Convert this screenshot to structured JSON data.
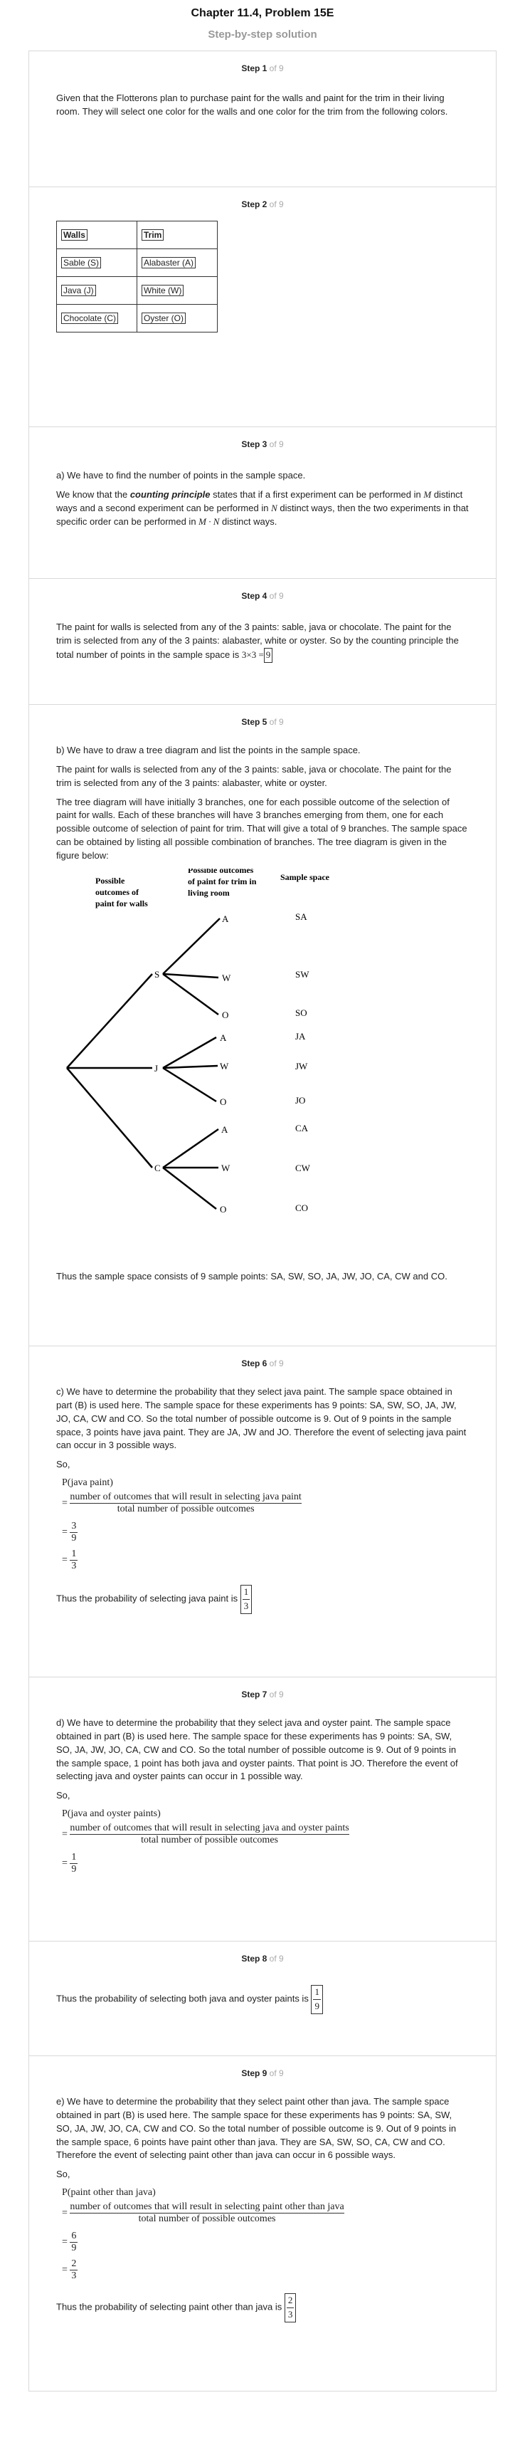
{
  "header": {
    "title": "Chapter 11.4, Problem 15E",
    "subtitle": "Step-by-step solution"
  },
  "steps": [
    {
      "label": "Step 1",
      "of": "of 9",
      "text": "Given that the Flotterons plan to purchase paint for the walls and paint for the trim in their living room. They will select one color for the walls and one color for the trim from the following colors."
    },
    {
      "label": "Step 2",
      "of": "of 9",
      "table": {
        "headers": [
          "Walls",
          "Trim"
        ],
        "rows": [
          [
            "Sable (S)",
            "Alabaster (A)"
          ],
          [
            "Java (J)",
            "White (W)"
          ],
          [
            "Chocolate (C)",
            "Oyster (O)"
          ]
        ]
      }
    },
    {
      "label": "Step 3",
      "of": "of 9",
      "text1": "a) We have to find the number of points in the sample space.",
      "t2a": "We know that the ",
      "t2b": "counting principle",
      "t2c": " states that if a first experiment can be performed in ",
      "m": "M",
      "t2d": " distinct ways and a second experiment can be performed in ",
      "n": "N",
      "t2e": " distinct ways, then the two experiments in that specific order can be performed in ",
      "mn": "M · N",
      "t2f": " distinct ways."
    },
    {
      "label": "Step 4",
      "of": "of 9",
      "text": "The paint for walls is selected from any of the 3 paints: sable, java or chocolate. The paint for the trim is selected from any of the 3 paints: alabaster, white or oyster. So by the counting principle the total number of points in the sample space is ",
      "expr": "3×3 =",
      "ans": "9"
    },
    {
      "label": "Step 5",
      "of": "of 9",
      "text1": "b) We have to draw a tree diagram and list the points in the sample space.",
      "text2": "The paint for walls is selected from any of the 3 paints: sable, java or chocolate. The paint for the trim is selected from any of the 3 paints: alabaster, white or oyster.",
      "text3": "The tree diagram will have initially 3 branches, one for each possible outcome of the selection of paint for walls. Each of these branches will have 3 branches emerging from them, one for each possible outcome of selection of paint for trim. That will give a total of 9 branches. The sample space can be obtained by listing all possible combination of branches. The tree diagram is given in the figure below:",
      "tree": {
        "col1": [
          "Possible",
          "outcomes of",
          "paint for walls"
        ],
        "col2": [
          "Possible outcomes",
          "of paint for trim in",
          "living room"
        ],
        "col3": "Sample space",
        "walls": [
          "S",
          "J",
          "C"
        ],
        "trims": [
          "A",
          "W",
          "O",
          "A",
          "W",
          "O",
          "A",
          "W",
          "O"
        ],
        "samples": [
          "SA",
          "SW",
          "SO",
          "JA",
          "JW",
          "JO",
          "CA",
          "CW",
          "CO"
        ]
      },
      "text4": "Thus the sample space consists of 9 sample points: SA, SW, SO, JA, JW, JO, CA, CW and CO."
    },
    {
      "label": "Step 6",
      "of": "of 9",
      "text1": "c) We have to determine the probability that they select java paint. The sample space obtained in part (B) is used here. The sample space for these experiments has 9 points: SA, SW, SO, JA, JW, JO, CA, CW and CO. So the total number of possible outcome is 9. Out of 9 points in the sample space, 3 points have java paint. They are JA, JW and JO. Therefore the event of selecting java paint can occur in 3 possible ways.",
      "so": "So,",
      "p": "P(java paint)",
      "num": "number of outcomes that will result in selecting java paint",
      "den": "total number of possible outcomes",
      "f1n": "3",
      "f1d": "9",
      "f2n": "1",
      "f2d": "3",
      "concl": "Thus the probability of selecting java paint is ",
      "an": "1",
      "ad": "3"
    },
    {
      "label": "Step 7",
      "of": "of 9",
      "text1": "d) We have to determine the probability that they select java and oyster paint. The sample space obtained in part (B) is used here. The sample space for these experiments has 9 points: SA, SW, SO, JA, JW, JO, CA, CW and CO. So the total number of possible outcome is 9. Out of 9 points in the sample space, 1 point has both java and oyster paints. That point is JO. Therefore the event of selecting java and oyster paints can occur in 1 possible way.",
      "so": "So,",
      "p": "P(java and oyster paints)",
      "num": "number of outcomes that will result in selecting java and oyster paints",
      "den": "total number of possible outcomes",
      "f1n": "1",
      "f1d": "9"
    },
    {
      "label": "Step 8",
      "of": "of 9",
      "concl": "Thus the probability of selecting both java and oyster paints is ",
      "an": "1",
      "ad": "9"
    },
    {
      "label": "Step 9",
      "of": "of 9",
      "text1": "e) We have to determine the probability that they select paint other than java. The sample space obtained in part (B) is used here. The sample space for these experiments has 9 points: SA, SW, SO, JA, JW, JO, CA, CW and CO. So the total number of possible outcome is 9. Out of 9 points in the sample space, 6 points have paint other than java. They are SA, SW, SO, CA, CW and CO. Therefore the event of selecting paint other than java can occur in 6 possible ways.",
      "so": "So,",
      "p": "P(paint other than java)",
      "num": "number of outcomes that will result in selecting paint other than java",
      "den": "total number of possible outcomes",
      "f1n": "6",
      "f1d": "9",
      "f2n": "2",
      "f2d": "3",
      "concl": "Thus the probability of selecting paint other than java is ",
      "an": "2",
      "ad": "3"
    }
  ]
}
